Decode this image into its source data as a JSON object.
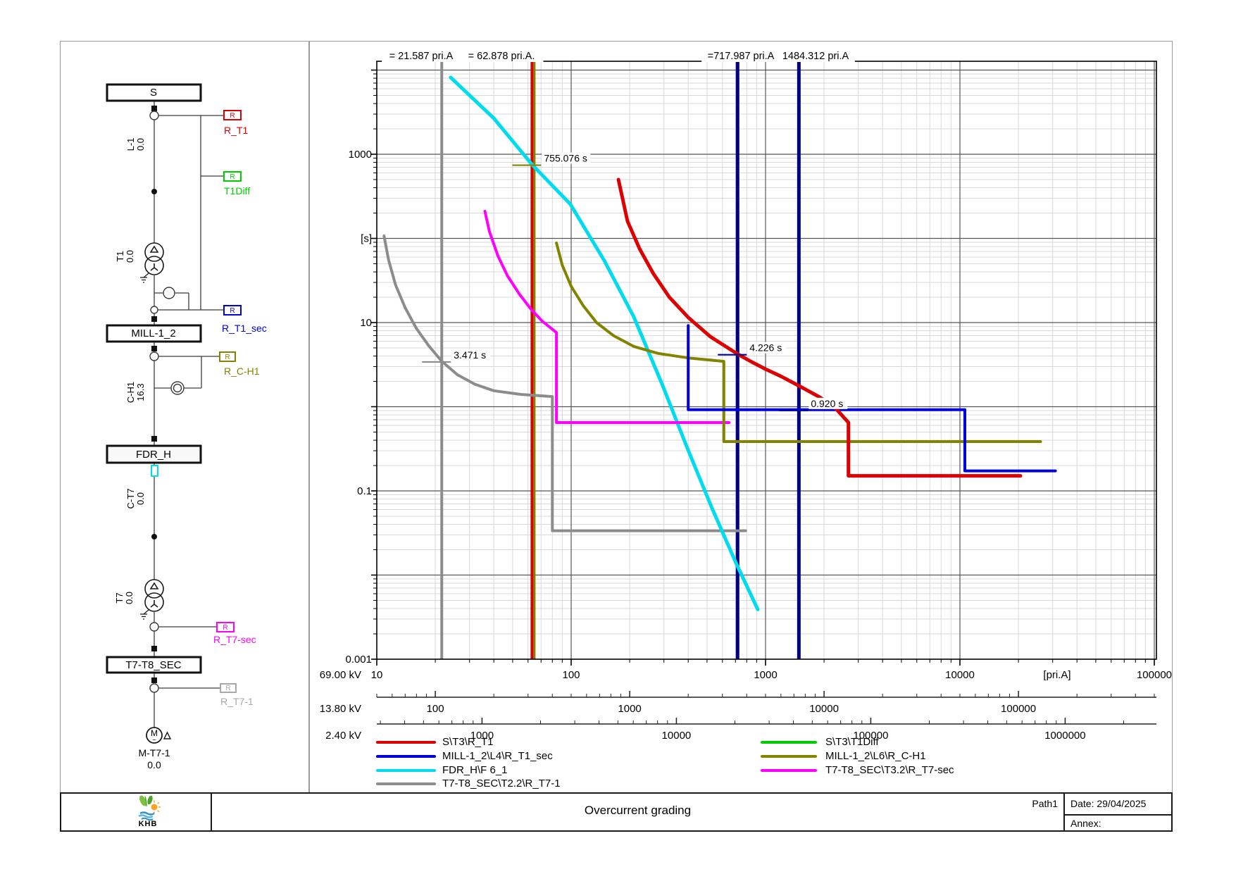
{
  "page": {
    "title_block": {
      "title": "Overcurrent grading",
      "path": "Path1",
      "date": "Date: 29/04/2025",
      "annex": "Annex:",
      "logo_text": "KHB"
    }
  },
  "diagram": {
    "buses": [
      {
        "label": "S"
      },
      {
        "label": "MILL-1_2"
      },
      {
        "label": "FDR_H"
      },
      {
        "label": "T7-T8_SEC"
      }
    ],
    "relays": [
      {
        "label": "R_T1",
        "symbol": "R",
        "color": "#dd0000"
      },
      {
        "label": "T1Diff",
        "symbol": "R",
        "color": "#00cc00"
      },
      {
        "label": "R_T1_sec",
        "symbol": "R",
        "color": "#0000dd"
      },
      {
        "label": "R_C-H1",
        "symbol": "R",
        "color": "#838300"
      },
      {
        "label": "R_T7-sec",
        "symbol": "R",
        "color": "#ff00ff"
      },
      {
        "label": "R_T7-1",
        "symbol": "R",
        "color": "#a8a8a8"
      }
    ],
    "branches": [
      {
        "label": "L-1",
        "value": "0.0"
      },
      {
        "label": "T1",
        "value": "0.0"
      },
      {
        "label": "C-H1",
        "value": "16.3"
      },
      {
        "label": "C-T7",
        "value": "0.0"
      },
      {
        "label": "T7",
        "value": "0.0"
      }
    ],
    "motor": {
      "label": "M-T7-1",
      "value": "0.0",
      "symbol": "M"
    }
  },
  "chart_data": {
    "type": "line",
    "title": "Overcurrent grading",
    "xlabel": "[pri.A]",
    "ylabel": "[s]",
    "x_axis": {
      "voltage": "69.00 kV",
      "min": 10,
      "max": 102600,
      "tick_values": [
        10,
        100,
        1000,
        10000,
        100000
      ],
      "tick_labels": [
        "10",
        "100",
        "1000",
        "10000",
        "100000"
      ],
      "unit_label": "[pri.A]",
      "unit_at": 31623
    },
    "y_axis": {
      "min": 0.001,
      "max": 12700,
      "labels": [
        {
          "value": 1000,
          "text": "1000"
        },
        {
          "value": 100,
          "text": "[s]"
        },
        {
          "value": 10,
          "text": "10"
        },
        {
          "value": 0.1,
          "text": "0.1"
        },
        {
          "value": 0.001,
          "text": "0.001"
        }
      ]
    },
    "sub_axes": [
      {
        "voltage": "13.80 kV",
        "ratio": 5,
        "tick_values": [
          100,
          1000,
          10000,
          100000
        ],
        "tick_labels": [
          "100",
          "1000",
          "10000",
          "100000"
        ]
      },
      {
        "voltage": "2.40 kV",
        "ratio": 28.75,
        "tick_values": [
          1000,
          10000,
          100000,
          1000000
        ],
        "tick_labels": [
          "1000",
          "10000",
          "100000",
          "1000000"
        ]
      }
    ],
    "fault_lines": [
      {
        "label": "= 21.587 pri.A",
        "current": 21.587,
        "color": "#8c8c8c",
        "width": 4,
        "label_center_x": 598
      },
      {
        "label": "= 62.878 pri.A.",
        "current": 62.878,
        "color": "#dd0000",
        "companion_color": "#838300",
        "width": 4,
        "label_center_x": 712
      },
      {
        "label": "=717.987 pri.A",
        "current": 717.987,
        "color": "#000080",
        "width": 5,
        "label_center_x": 1052
      },
      {
        "label": "1484.312 pri.A",
        "current": 1484.312,
        "color": "#000080",
        "width": 5,
        "label_center_x": 1158
      }
    ],
    "annotations": [
      {
        "text": "3.471 s",
        "current": 21.587,
        "time": 3.471,
        "color": "#8c8c8c"
      },
      {
        "text": "755.076 s",
        "current": 62.878,
        "time": 755.076,
        "color": "#838300"
      },
      {
        "text": "4.226 s",
        "current": 717.987,
        "time": 4.226,
        "color": "#000099"
      },
      {
        "text": "0.920 s",
        "current": 1484.312,
        "time": 0.92,
        "color": "#000099"
      }
    ],
    "series": [
      {
        "name": "T7-T8_SEC\\T2.2\\R_T7-1",
        "color": "#8c8c8c",
        "width": 4,
        "points": [
          [
            10.9,
            107
          ],
          [
            11.5,
            55
          ],
          [
            12.5,
            28
          ],
          [
            14,
            15
          ],
          [
            16,
            8.5
          ],
          [
            18.5,
            5.3
          ],
          [
            21.587,
            3.471
          ],
          [
            26,
            2.4
          ],
          [
            32,
            1.85
          ],
          [
            40,
            1.55
          ],
          [
            55,
            1.4
          ],
          [
            80,
            1.32
          ],
          [
            80,
            0.0336
          ],
          [
            790,
            0.0336
          ]
        ]
      },
      {
        "name": "FDR_H\\F 6_1",
        "color": "#00dcee",
        "width": 5,
        "points": [
          [
            24,
            8170
          ],
          [
            40,
            2670
          ],
          [
            62.878,
            755.076
          ],
          [
            99,
            255
          ],
          [
            148,
            54.5
          ],
          [
            210,
            11.7
          ],
          [
            293,
            1.87
          ],
          [
            394,
            0.33
          ],
          [
            528,
            0.064
          ],
          [
            707,
            0.0137
          ],
          [
            912,
            0.0039
          ]
        ]
      },
      {
        "name": "T7-T8_SEC\\T3.2\\R_T7-sec",
        "color": "#ff00ff",
        "width": 4,
        "points": [
          [
            36,
            210
          ],
          [
            38,
            120
          ],
          [
            42,
            62
          ],
          [
            47,
            36
          ],
          [
            54,
            22
          ],
          [
            62,
            14.5
          ],
          [
            71,
            10.4
          ],
          [
            84,
            7.6
          ],
          [
            84,
            0.648
          ],
          [
            650,
            0.648
          ]
        ]
      },
      {
        "name": "MILL-1_2\\L6\\R_C-H1",
        "color": "#838300",
        "width": 4,
        "points": [
          [
            84,
            88
          ],
          [
            90,
            48
          ],
          [
            100,
            27
          ],
          [
            115,
            16
          ],
          [
            135,
            10
          ],
          [
            165,
            7
          ],
          [
            210,
            5.2
          ],
          [
            280,
            4.3
          ],
          [
            400,
            3.8
          ],
          [
            610,
            3.46
          ],
          [
            610,
            0.385
          ],
          [
            26000,
            0.385
          ]
        ]
      },
      {
        "name": "MILL-1_2\\L4\\R_T1_sec",
        "color": "#0000dd",
        "width": 4,
        "points": [
          [
            400,
            9.2
          ],
          [
            400,
            0.92
          ],
          [
            10600,
            0.92
          ],
          [
            10600,
            0.173
          ],
          [
            31000,
            0.173
          ]
        ]
      },
      {
        "name": "S\\T3\\R_T1",
        "color": "#dd0000",
        "width": 5,
        "points": [
          [
            175,
            500
          ],
          [
            195,
            160
          ],
          [
            225,
            75
          ],
          [
            265,
            38
          ],
          [
            320,
            20
          ],
          [
            400,
            11.5
          ],
          [
            520,
            6.8
          ],
          [
            718,
            4.226
          ],
          [
            850,
            3.4
          ],
          [
            1000,
            2.8
          ],
          [
            1200,
            2.3
          ],
          [
            1500,
            1.75
          ],
          [
            1900,
            1.3
          ],
          [
            2300,
            0.95
          ],
          [
            2670,
            0.65
          ],
          [
            2670,
            0.151
          ],
          [
            20500,
            0.151
          ]
        ]
      },
      {
        "name": "S\\T3\\T1Diff",
        "color": "#00cc00",
        "width": 4,
        "points": []
      }
    ],
    "legend": {
      "left": [
        {
          "label": "S\\T3\\R_T1",
          "color": "#dd0000"
        },
        {
          "label": "MILL-1_2\\L4\\R_T1_sec",
          "color": "#0000dd"
        },
        {
          "label": "FDR_H\\F 6_1",
          "color": "#00dcee"
        },
        {
          "label": "T7-T8_SEC\\T2.2\\R_T7-1",
          "color": "#8c8c8c"
        }
      ],
      "right": [
        {
          "label": "S\\T3\\T1Diff",
          "color": "#00cc00"
        },
        {
          "label": "MILL-1_2\\L6\\R_C-H1",
          "color": "#838300"
        },
        {
          "label": "T7-T8_SEC\\T3.2\\R_T7-sec",
          "color": "#ff00ff"
        }
      ]
    }
  }
}
